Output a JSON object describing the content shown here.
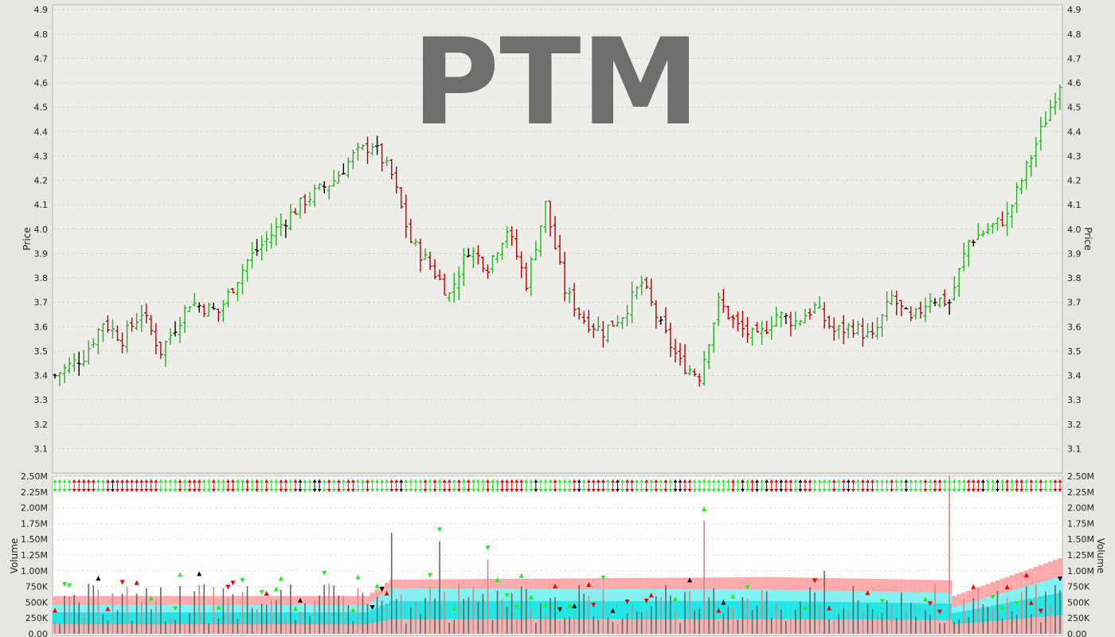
{
  "chart_data": [
    {
      "type": "candlestick",
      "title": "PTM",
      "ylabel": "Price",
      "ylim": [
        3.0,
        4.92
      ],
      "yticks": [
        "3.1",
        "3.2",
        "3.3",
        "3.4",
        "3.5",
        "3.6",
        "3.7",
        "3.8",
        "3.9",
        "4.0",
        "4.1",
        "4.2",
        "4.3",
        "4.4",
        "4.5",
        "4.6",
        "4.7",
        "4.8",
        "4.9"
      ],
      "grid": true,
      "bars": 210,
      "close_path": [
        {
          "bar": 0,
          "close": 3.4
        },
        {
          "bar": 6,
          "close": 3.48
        },
        {
          "bar": 10,
          "close": 3.62
        },
        {
          "bar": 14,
          "close": 3.55
        },
        {
          "bar": 18,
          "close": 3.66
        },
        {
          "bar": 22,
          "close": 3.5
        },
        {
          "bar": 28,
          "close": 3.7
        },
        {
          "bar": 34,
          "close": 3.66
        },
        {
          "bar": 40,
          "close": 3.87
        },
        {
          "bar": 46,
          "close": 4.0
        },
        {
          "bar": 52,
          "close": 4.12
        },
        {
          "bar": 58,
          "close": 4.2
        },
        {
          "bar": 62,
          "close": 4.3
        },
        {
          "bar": 66,
          "close": 4.35
        },
        {
          "bar": 70,
          "close": 4.22
        },
        {
          "bar": 74,
          "close": 3.95
        },
        {
          "bar": 78,
          "close": 3.85
        },
        {
          "bar": 82,
          "close": 3.73
        },
        {
          "bar": 86,
          "close": 3.92
        },
        {
          "bar": 90,
          "close": 3.85
        },
        {
          "bar": 94,
          "close": 4.0
        },
        {
          "bar": 98,
          "close": 3.78
        },
        {
          "bar": 102,
          "close": 4.1
        },
        {
          "bar": 106,
          "close": 3.75
        },
        {
          "bar": 110,
          "close": 3.63
        },
        {
          "bar": 114,
          "close": 3.58
        },
        {
          "bar": 118,
          "close": 3.65
        },
        {
          "bar": 122,
          "close": 3.78
        },
        {
          "bar": 126,
          "close": 3.6
        },
        {
          "bar": 130,
          "close": 3.45
        },
        {
          "bar": 134,
          "close": 3.4
        },
        {
          "bar": 138,
          "close": 3.7
        },
        {
          "bar": 142,
          "close": 3.6
        },
        {
          "bar": 146,
          "close": 3.55
        },
        {
          "bar": 150,
          "close": 3.65
        },
        {
          "bar": 154,
          "close": 3.62
        },
        {
          "bar": 158,
          "close": 3.68
        },
        {
          "bar": 162,
          "close": 3.58
        },
        {
          "bar": 166,
          "close": 3.6
        },
        {
          "bar": 170,
          "close": 3.55
        },
        {
          "bar": 174,
          "close": 3.72
        },
        {
          "bar": 178,
          "close": 3.62
        },
        {
          "bar": 182,
          "close": 3.72
        },
        {
          "bar": 186,
          "close": 3.7
        },
        {
          "bar": 190,
          "close": 3.95
        },
        {
          "bar": 194,
          "close": 4.0
        },
        {
          "bar": 198,
          "close": 4.05
        },
        {
          "bar": 202,
          "close": 4.25
        },
        {
          "bar": 206,
          "close": 4.45
        },
        {
          "bar": 209,
          "close": 4.6
        }
      ],
      "colors": {
        "up": "#22b222",
        "down": "#bb0000",
        "neutral": "#000000",
        "grid": "#d6d4d0",
        "plot_bg": "#efedea",
        "watermark": "#6e6e6e"
      }
    },
    {
      "type": "bar",
      "ylabel": "Volume",
      "ylim": [
        0,
        2500000
      ],
      "yticks": [
        "0.00",
        "250K",
        "500K",
        "750K",
        "1.00M",
        "1.25M",
        "1.50M",
        "1.75M",
        "2.00M",
        "2.25M",
        "2.50M"
      ],
      "grid": true,
      "spikes": [
        {
          "bar": 70,
          "volume": 1600000
        },
        {
          "bar": 80,
          "volume": 1470000
        },
        {
          "bar": 90,
          "volume": 1180000
        },
        {
          "bar": 135,
          "volume": 1800000
        },
        {
          "bar": 186,
          "volume": 2500000
        },
        {
          "bar": 160,
          "volume": 1000000
        }
      ],
      "band_levels": [
        {
          "bar": 0,
          "pink": 600000,
          "cyan": 460000,
          "cyan_dark": 340000
        },
        {
          "bar": 65,
          "pink": 600000,
          "cyan": 460000,
          "cyan_dark": 340000
        },
        {
          "bar": 70,
          "pink": 860000,
          "cyan": 720000,
          "cyan_dark": 520000
        },
        {
          "bar": 150,
          "pink": 900000,
          "cyan": 700000,
          "cyan_dark": 520000
        },
        {
          "bar": 186,
          "pink": 850000,
          "cyan": 650000,
          "cyan_dark": 480000
        },
        {
          "bar": 187,
          "pink": 600000,
          "cyan": 430000,
          "cyan_dark": 330000
        },
        {
          "bar": 209,
          "pink": 1200000,
          "cyan": 900000,
          "cyan_dark": 650000
        }
      ],
      "colors": {
        "bar": "#666666",
        "bar_pink": "#cc8888",
        "pink_band": "#ffaaaa",
        "cyan_band": "#80f4f4",
        "cyan_dark_band": "#22e6e6",
        "arrow_green": "#22ee22",
        "arrow_red": "#ee0000",
        "arrow_black": "#000000"
      }
    }
  ]
}
